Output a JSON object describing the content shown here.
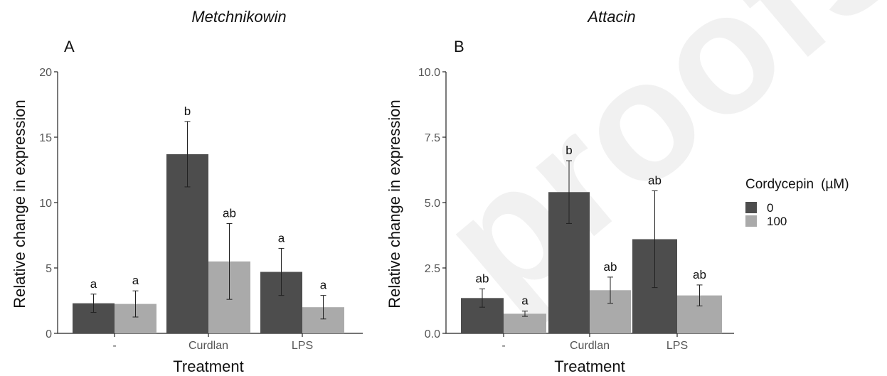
{
  "legend": {
    "title": "Cordycepin",
    "unit": "(µM)",
    "entries": [
      {
        "label": "0",
        "color": "#4d4d4d"
      },
      {
        "label": "100",
        "color": "#aaaaaa"
      }
    ]
  },
  "watermark": "proofs",
  "chart_data": [
    {
      "type": "bar",
      "panel_letter": "A",
      "title": "Metchnikowin",
      "xlabel": "Treatment",
      "ylabel": "Relative change in expression",
      "ylim": [
        0,
        20
      ],
      "yticks": [
        0,
        5,
        10,
        15,
        20
      ],
      "ytick_labels": [
        "0",
        "5",
        "10",
        "15",
        "20"
      ],
      "categories": [
        "-",
        "Curdlan",
        "LPS"
      ],
      "series": [
        {
          "name": "0",
          "color": "#4d4d4d",
          "values": [
            2.3,
            13.7,
            4.7
          ],
          "errors": [
            0.7,
            2.5,
            1.8
          ],
          "labels": [
            "a",
            "b",
            "a"
          ]
        },
        {
          "name": "100",
          "color": "#aaaaaa",
          "values": [
            2.25,
            5.5,
            2.0
          ],
          "errors": [
            1.0,
            2.9,
            0.9
          ],
          "labels": [
            "a",
            "ab",
            "a"
          ]
        }
      ]
    },
    {
      "type": "bar",
      "panel_letter": "B",
      "title": "Attacin",
      "xlabel": "Treatment",
      "ylabel": "Relative change in expression",
      "ylim": [
        0,
        10
      ],
      "yticks": [
        0,
        2.5,
        5,
        7.5,
        10
      ],
      "ytick_labels": [
        "0.0",
        "2.5",
        "5.0",
        "7.5",
        "10.0"
      ],
      "categories": [
        "-",
        "Curdlan",
        "LPS"
      ],
      "series": [
        {
          "name": "0",
          "color": "#4d4d4d",
          "values": [
            1.35,
            5.4,
            3.6
          ],
          "errors": [
            0.35,
            1.2,
            1.85
          ],
          "labels": [
            "ab",
            "b",
            "ab"
          ]
        },
        {
          "name": "100",
          "color": "#aaaaaa",
          "values": [
            0.75,
            1.65,
            1.45
          ],
          "errors": [
            0.1,
            0.5,
            0.4
          ],
          "labels": [
            "a",
            "ab",
            "ab"
          ]
        }
      ]
    }
  ]
}
